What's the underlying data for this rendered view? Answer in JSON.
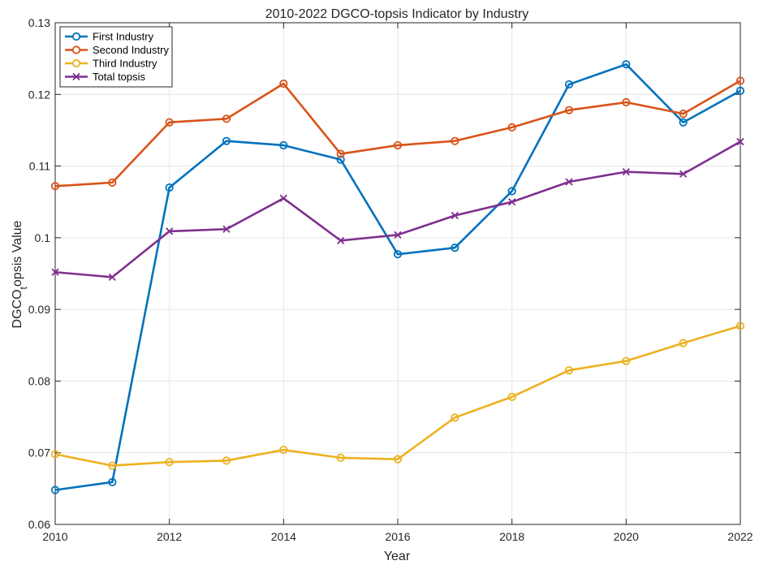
{
  "chart_data": {
    "type": "line",
    "title": "2010-2022 DGCO-topsis Indicator by Industry",
    "xlabel": "Year",
    "ylabel_main": "DGCO",
    "ylabel_sub": "t",
    "ylabel_rest": "opsis Value",
    "x": [
      2010,
      2011,
      2012,
      2013,
      2014,
      2015,
      2016,
      2017,
      2018,
      2019,
      2020,
      2021,
      2022
    ],
    "xlim": [
      2010,
      2022
    ],
    "ylim": [
      0.06,
      0.13
    ],
    "xticks": [
      2010,
      2012,
      2014,
      2016,
      2018,
      2020,
      2022
    ],
    "xtick_labels": [
      "2010",
      "2012",
      "2014",
      "2016",
      "2018",
      "2020",
      "2022"
    ],
    "yticks": [
      0.06,
      0.07,
      0.08,
      0.09,
      0.1,
      0.11,
      0.12,
      0.13
    ],
    "ytick_labels": [
      "0.06",
      "0.07",
      "0.08",
      "0.09",
      "0.1",
      "0.11",
      "0.12",
      "0.13"
    ],
    "grid": true,
    "legend_location": "top-left",
    "series": [
      {
        "name": "First Industry",
        "color": "#0072BD",
        "marker": "circle",
        "values": [
          0.0648,
          0.0659,
          0.107,
          0.1135,
          0.1129,
          0.1109,
          0.0977,
          0.0986,
          0.1065,
          0.1214,
          0.1242,
          0.1161,
          0.1205
        ]
      },
      {
        "name": "Second Industry",
        "color": "#D95319",
        "marker": "circle",
        "values": [
          0.1072,
          0.1077,
          0.1161,
          0.1166,
          0.1215,
          0.1117,
          0.1129,
          0.1135,
          0.1154,
          0.1178,
          0.1189,
          0.1173,
          0.1219
        ]
      },
      {
        "name": "Third Industry",
        "color": "#EDB120",
        "marker": "circle",
        "values": [
          0.0698,
          0.0682,
          0.0687,
          0.0689,
          0.0704,
          0.0693,
          0.0691,
          0.0749,
          0.0778,
          0.0815,
          0.0828,
          0.0853,
          0.0877
        ]
      },
      {
        "name": "Total topsis",
        "color": "#7E2F8E",
        "marker": "x",
        "values": [
          0.0952,
          0.0945,
          0.1009,
          0.1012,
          0.1055,
          0.0996,
          0.1004,
          0.1031,
          0.105,
          0.1078,
          0.1092,
          0.1089,
          0.1134
        ]
      }
    ]
  }
}
